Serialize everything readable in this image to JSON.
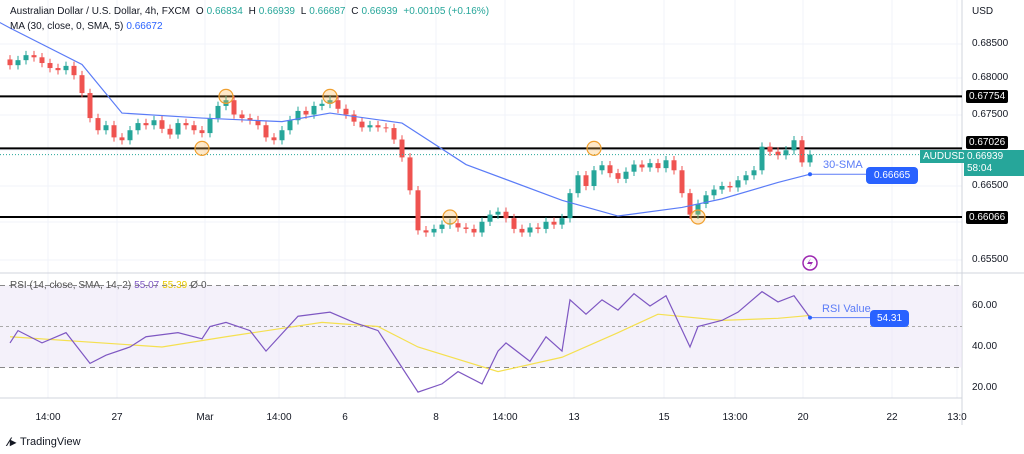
{
  "header": {
    "title": "Australian Dollar / U.S. Dollar, 4h, FXCM",
    "o_label": "O",
    "o": "0.66834",
    "h_label": "H",
    "h": "0.66939",
    "l_label": "L",
    "l": "0.66687",
    "c_label": "C",
    "c": "0.66939",
    "change": "+0.00105 (+0.16%)",
    "ma_label": "MA (30, close, 0, SMA, 5)",
    "ma_value": "0.66672",
    "currency": "USD"
  },
  "rsi_legend": {
    "label": "RSI (14, close, SMA, 14, 2)",
    "rsi": "55.07",
    "sma": "55.39",
    "v1": "Ø",
    "v2": "0"
  },
  "price_axis": [
    "0.68500",
    "0.68000",
    "0.67500",
    "0.66500",
    "0.65500"
  ],
  "levels": [
    {
      "label": "0.67754",
      "value": 0.67754
    },
    {
      "label": "0.67026",
      "value": 0.67026
    },
    {
      "label": "0.66066",
      "value": 0.66066
    }
  ],
  "current": {
    "symbol": "AUDUSD",
    "price": "0.66939",
    "countdown": "58:04"
  },
  "sma_annotation": {
    "label": "30-SMA",
    "value": "0.66665"
  },
  "rsi_annotation": {
    "label": "RSI Value",
    "value": "54.31"
  },
  "rsi_axis": [
    "60.00",
    "40.00",
    "20.00"
  ],
  "time_axis": [
    "14:00",
    "27",
    "Mar",
    "14:00",
    "6",
    "8",
    "14:00",
    "13",
    "15",
    "13:00",
    "20",
    "22",
    "13:0"
  ],
  "footer": {
    "brand": "TradingView"
  },
  "colors": {
    "up": "#26a69a",
    "down": "#ef5350",
    "ma": "#5b7cf7",
    "rsi": "#7e57c2",
    "rsi_sma": "#f5e050",
    "accent": "#2962ff"
  },
  "chart_data": {
    "type": "candlestick",
    "title": "Australian Dollar / U.S. Dollar, 4h, FXCM",
    "ylim": [
      0.652,
      0.689
    ],
    "closes": [
      0.6819,
      0.6826,
      0.6833,
      0.683,
      0.6822,
      0.6815,
      0.6812,
      0.6818,
      0.6805,
      0.678,
      0.6745,
      0.6728,
      0.6735,
      0.6718,
      0.6714,
      0.6728,
      0.6738,
      0.6735,
      0.6742,
      0.673,
      0.6722,
      0.6738,
      0.6735,
      0.6728,
      0.6724,
      0.6745,
      0.6762,
      0.677,
      0.675,
      0.6745,
      0.6742,
      0.6735,
      0.6718,
      0.6714,
      0.6728,
      0.6742,
      0.6755,
      0.675,
      0.6762,
      0.6765,
      0.677,
      0.6758,
      0.675,
      0.674,
      0.6732,
      0.6735,
      0.6732,
      0.6731,
      0.6715,
      0.669,
      0.6644,
      0.6588,
      0.6585,
      0.659,
      0.6596,
      0.6598,
      0.6592,
      0.659,
      0.6585,
      0.66,
      0.661,
      0.6614,
      0.6605,
      0.659,
      0.6585,
      0.6592,
      0.659,
      0.66,
      0.6596,
      0.6605,
      0.664,
      0.6665,
      0.665,
      0.6672,
      0.6679,
      0.6668,
      0.666,
      0.667,
      0.668,
      0.6676,
      0.6682,
      0.6675,
      0.6686,
      0.6672,
      0.664,
      0.661,
      0.6625,
      0.6637,
      0.6645,
      0.665,
      0.6648,
      0.6658,
      0.6665,
      0.6672,
      0.6705,
      0.6698,
      0.6693,
      0.67,
      0.6714,
      0.6683,
      0.6694
    ],
    "ma": [
      [
        0,
        0.6871
      ],
      [
        9,
        0.682
      ],
      [
        14,
        0.6752
      ],
      [
        24,
        0.6745
      ],
      [
        34,
        0.674
      ],
      [
        40,
        0.6752
      ],
      [
        49,
        0.6738
      ],
      [
        57,
        0.668
      ],
      [
        69,
        0.663
      ],
      [
        76,
        0.6608
      ],
      [
        84,
        0.662
      ],
      [
        89,
        0.6632
      ],
      [
        96,
        0.6655
      ],
      [
        100,
        0.66665
      ]
    ],
    "rsi": {
      "ylim": [
        10,
        80
      ],
      "bands": [
        30,
        70
      ],
      "values": [
        [
          0,
          42
        ],
        [
          1,
          48
        ],
        [
          4,
          42
        ],
        [
          7,
          47
        ],
        [
          10,
          32
        ],
        [
          12,
          36
        ],
        [
          15,
          40
        ],
        [
          17,
          45
        ],
        [
          21,
          47
        ],
        [
          24,
          44
        ],
        [
          25,
          50
        ],
        [
          27,
          52
        ],
        [
          30,
          48
        ],
        [
          32,
          38
        ],
        [
          36,
          55
        ],
        [
          40,
          57
        ],
        [
          43,
          52
        ],
        [
          46,
          48
        ],
        [
          49,
          30
        ],
        [
          51,
          18
        ],
        [
          54,
          22
        ],
        [
          56,
          28
        ],
        [
          59,
          22
        ],
        [
          61,
          38
        ],
        [
          62,
          42
        ],
        [
          65,
          33
        ],
        [
          67,
          45
        ],
        [
          69,
          38
        ],
        [
          70,
          63
        ],
        [
          72,
          56
        ],
        [
          74,
          63
        ],
        [
          76,
          58
        ],
        [
          78,
          66
        ],
        [
          80,
          60
        ],
        [
          82,
          65
        ],
        [
          85,
          40
        ],
        [
          86,
          50
        ],
        [
          89,
          53
        ],
        [
          91,
          57
        ],
        [
          94,
          67
        ],
        [
          96,
          62
        ],
        [
          98,
          65
        ],
        [
          100,
          54.31
        ]
      ],
      "sma": [
        [
          0,
          45
        ],
        [
          19,
          40
        ],
        [
          27,
          45
        ],
        [
          39,
          52
        ],
        [
          46,
          50
        ],
        [
          51,
          40
        ],
        [
          61,
          28
        ],
        [
          69,
          35
        ],
        [
          76,
          47
        ],
        [
          81,
          56
        ],
        [
          89,
          53
        ],
        [
          96,
          54
        ],
        [
          100,
          55.39
        ]
      ]
    },
    "markers": [
      [
        27,
        0.67754
      ],
      [
        24,
        0.67026
      ],
      [
        40,
        0.67754
      ],
      [
        55,
        0.66066
      ],
      [
        73,
        0.67026
      ],
      [
        86,
        0.66066
      ]
    ]
  }
}
